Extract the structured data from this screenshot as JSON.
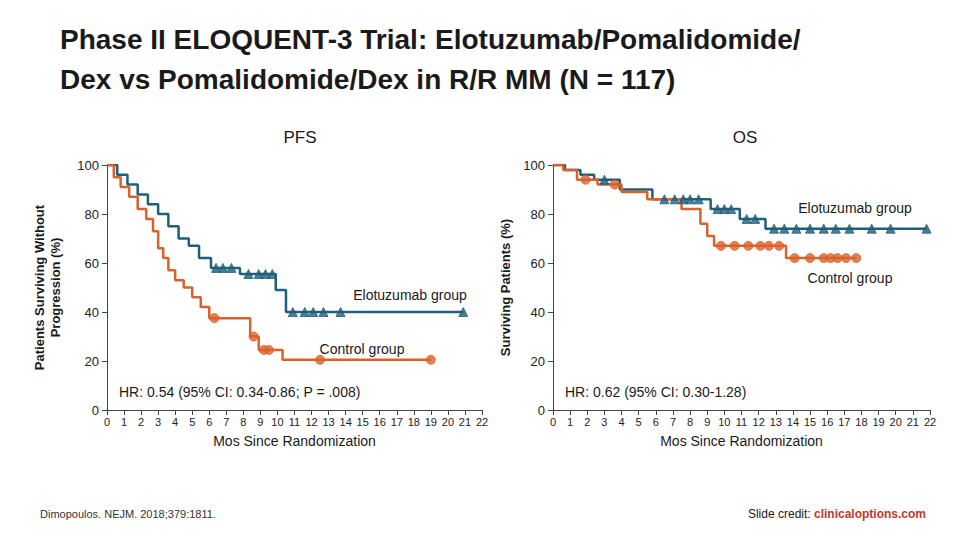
{
  "title": "Phase II ELOQUENT-3 Trial: Elotuzumab/Pomalidomide/\nDex vs Pomalidomide/Dex in R/R MM (N = 117)",
  "source": "Dimopoulos. NEJM. 2018;379:1811.",
  "credit": {
    "label": "Slide credit:",
    "link": "clinicaloptions.com"
  },
  "chart_data": [
    {
      "type": "line",
      "title": "PFS",
      "xlabel": "Mos Since Randomization",
      "ylabel": "Patients Surviving Without\nProgression (%)",
      "xlim": [
        0,
        22
      ],
      "xticks": [
        0,
        1,
        2,
        3,
        4,
        5,
        6,
        7,
        8,
        9,
        10,
        11,
        12,
        13,
        14,
        15,
        16,
        17,
        18,
        19,
        20,
        21,
        22
      ],
      "ylim": [
        0,
        100
      ],
      "yticks": [
        0,
        20,
        40,
        60,
        80,
        100
      ],
      "grid": false,
      "line_style": "step",
      "annotations": [
        "HR: 0.54 (95% CI: 0.34-0.86; P = .008)"
      ],
      "series": [
        {
          "name": "Elotuzumab group",
          "color": "#1f5f7a",
          "marker": "triangle",
          "x": [
            0,
            0.6,
            1.2,
            1.8,
            2.4,
            3.0,
            3.6,
            4.2,
            4.8,
            5.4,
            6.1,
            7.8,
            9.9,
            10.5,
            20.9
          ],
          "values": [
            100,
            96,
            92,
            88,
            84,
            80,
            75,
            70,
            67,
            62,
            58,
            55.5,
            49,
            40,
            40
          ],
          "censored": {
            "x": [
              6.4,
              6.8,
              7.3,
              8.3,
              8.9,
              9.3,
              9.7,
              10.9,
              11.6,
              12.1,
              12.7,
              13.7,
              20.9
            ],
            "values": [
              58,
              58,
              58,
              55.5,
              55.5,
              55.5,
              55.5,
              40,
              40,
              40,
              40,
              40,
              40
            ]
          }
        },
        {
          "name": "Control group",
          "color": "#d9622b",
          "marker": "circle",
          "x": [
            0,
            0.4,
            0.8,
            1.3,
            1.8,
            2.3,
            2.7,
            3.0,
            3.3,
            3.6,
            4.0,
            4.5,
            5.0,
            5.5,
            6.0,
            8.4,
            8.9,
            10.3,
            19.0
          ],
          "values": [
            100,
            95,
            91,
            87,
            82,
            78,
            73,
            66,
            62,
            57,
            53,
            50,
            46,
            42,
            37.5,
            30,
            24.5,
            20.5,
            20.5
          ],
          "censored": {
            "x": [
              6.3,
              8.6,
              9.2,
              9.5,
              12.5,
              19.0
            ],
            "values": [
              37.5,
              30,
              24.5,
              24.5,
              20.5,
              20.5
            ]
          }
        }
      ]
    },
    {
      "type": "line",
      "title": "OS",
      "xlabel": "Mos Since Randomization",
      "ylabel": "Surviving Patients (%)",
      "xlim": [
        0,
        22
      ],
      "xticks": [
        0,
        1,
        2,
        3,
        4,
        5,
        6,
        7,
        8,
        9,
        10,
        11,
        12,
        13,
        14,
        15,
        16,
        17,
        18,
        19,
        20,
        21,
        22
      ],
      "ylim": [
        0,
        100
      ],
      "yticks": [
        0,
        20,
        40,
        60,
        80,
        100
      ],
      "grid": false,
      "line_style": "step",
      "annotations": [
        "HR: 0.62 (95% CI: 0.30-1.28)"
      ],
      "series": [
        {
          "name": "Elotuzumab group",
          "color": "#1f5f7a",
          "marker": "triangle",
          "x": [
            0,
            0.7,
            1.6,
            2.4,
            3.9,
            5.8,
            9.2,
            10.9,
            12.4,
            21.8
          ],
          "values": [
            100,
            98,
            96,
            94,
            90,
            86,
            82,
            78,
            74,
            74
          ],
          "censored": {
            "x": [
              3.0,
              6.5,
              7.1,
              7.6,
              8.0,
              8.5,
              9.6,
              10.0,
              10.4,
              11.3,
              11.8,
              12.9,
              13.5,
              14.2,
              15.0,
              15.8,
              16.5,
              17.3,
              18.6,
              19.7,
              21.8
            ],
            "values": [
              94,
              86,
              86,
              86,
              86,
              86,
              82,
              82,
              82,
              78,
              78,
              74,
              74,
              74,
              74,
              74,
              74,
              74,
              74,
              74,
              74
            ]
          }
        },
        {
          "name": "Control group",
          "color": "#d9622b",
          "marker": "circle",
          "x": [
            0,
            0.6,
            1.4,
            2.6,
            4.0,
            5.5,
            7.5,
            8.6,
            9.0,
            9.4,
            13.6,
            17.7
          ],
          "values": [
            100,
            98,
            94,
            92,
            89,
            86,
            82,
            76,
            71,
            67,
            62,
            62
          ],
          "censored": {
            "x": [
              1.9,
              3.6,
              9.8,
              10.6,
              11.4,
              12.1,
              12.6,
              13.2,
              14.1,
              15.0,
              15.8,
              16.2,
              16.6,
              17.1,
              17.7
            ],
            "values": [
              94,
              92,
              67,
              67,
              67,
              67,
              67,
              67,
              62,
              62,
              62,
              62,
              62,
              62,
              62
            ]
          }
        }
      ]
    }
  ]
}
